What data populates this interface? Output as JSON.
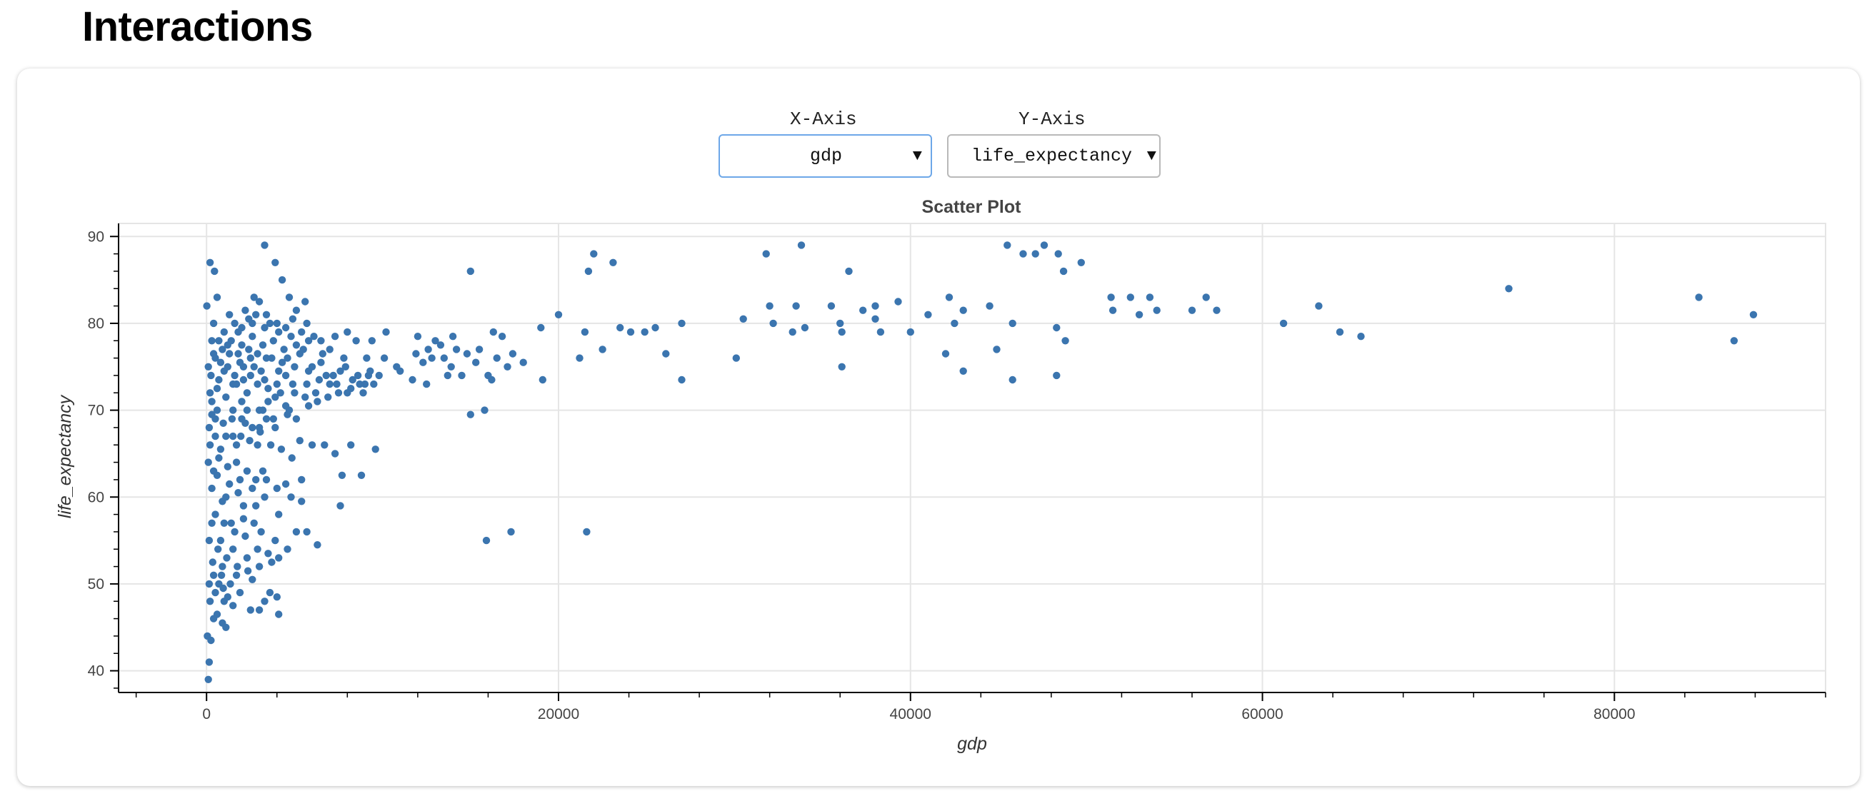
{
  "page": {
    "title": "Interactions"
  },
  "controls": {
    "x_axis": {
      "label": "X-Axis",
      "selected": "gdp",
      "caret": "▼"
    },
    "y_axis": {
      "label": "Y-Axis",
      "selected": "life_expectancy",
      "caret": "▼"
    }
  },
  "colors": {
    "point": "#3b75af",
    "grid": "#e5e5e5",
    "axis": "#000000",
    "focus_border": "#6da7e8"
  },
  "chart_data": {
    "type": "scatter",
    "title": "Scatter Plot",
    "xlabel": "gdp",
    "ylabel": "life_expectancy",
    "xlim": [
      -5000,
      92000
    ],
    "ylim": [
      37.5,
      91.5
    ],
    "x_ticks": [
      0,
      20000,
      40000,
      60000,
      80000
    ],
    "y_ticks": [
      40,
      50,
      60,
      70,
      80,
      90
    ],
    "grid": true,
    "points": [
      [
        15,
        82
      ],
      [
        200,
        87
      ],
      [
        450,
        86
      ],
      [
        3300,
        89
      ],
      [
        3900,
        87
      ],
      [
        600,
        83
      ],
      [
        1300,
        81
      ],
      [
        2700,
        83
      ],
      [
        3000,
        82.5
      ],
      [
        4300,
        85
      ],
      [
        4700,
        83
      ],
      [
        5100,
        81.5
      ],
      [
        5600,
        82.5
      ],
      [
        300,
        78
      ],
      [
        1000,
        79
      ],
      [
        2000,
        79.5
      ],
      [
        2600,
        80
      ],
      [
        3300,
        79.5
      ],
      [
        4000,
        80
      ],
      [
        4900,
        80.5
      ],
      [
        5700,
        80
      ],
      [
        6500,
        78
      ],
      [
        7300,
        78.5
      ],
      [
        8000,
        79
      ],
      [
        8500,
        78
      ],
      [
        9400,
        78
      ],
      [
        10200,
        79
      ],
      [
        12000,
        78.5
      ],
      [
        13000,
        78
      ],
      [
        14000,
        78.5
      ],
      [
        16300,
        79
      ],
      [
        16800,
        78.5
      ],
      [
        19000,
        79.5
      ],
      [
        21500,
        79
      ],
      [
        23500,
        79.5
      ],
      [
        24100,
        79
      ],
      [
        25500,
        79.5
      ],
      [
        27000,
        80
      ],
      [
        30500,
        80.5
      ],
      [
        32200,
        80
      ],
      [
        34000,
        79.5
      ],
      [
        36000,
        80
      ],
      [
        38000,
        80.5
      ],
      [
        41000,
        81
      ],
      [
        42500,
        80
      ],
      [
        45800,
        80
      ],
      [
        48300,
        79.5
      ],
      [
        54000,
        81.5
      ],
      [
        56000,
        81.5
      ],
      [
        20000,
        81
      ],
      [
        32000,
        82
      ],
      [
        33500,
        82
      ],
      [
        35500,
        82
      ],
      [
        37300,
        81.5
      ],
      [
        38000,
        82
      ],
      [
        39300,
        82.5
      ],
      [
        42200,
        83
      ],
      [
        44500,
        82
      ],
      [
        51400,
        83
      ],
      [
        52500,
        83
      ],
      [
        53600,
        83
      ],
      [
        56800,
        83
      ],
      [
        22000,
        88
      ],
      [
        23100,
        87
      ],
      [
        31800,
        88
      ],
      [
        33800,
        89
      ],
      [
        36500,
        86
      ],
      [
        45500,
        89
      ],
      [
        46400,
        88
      ],
      [
        47100,
        88
      ],
      [
        47600,
        89
      ],
      [
        48400,
        88
      ],
      [
        49700,
        87
      ],
      [
        48700,
        86
      ],
      [
        15000,
        86
      ],
      [
        21700,
        86
      ],
      [
        74000,
        84
      ],
      [
        84800,
        83
      ],
      [
        87900,
        81
      ],
      [
        86800,
        78
      ],
      [
        61200,
        80
      ],
      [
        63200,
        82
      ],
      [
        64400,
        79
      ],
      [
        65600,
        78.5
      ],
      [
        57400,
        81.5
      ],
      [
        53000,
        81
      ],
      [
        51500,
        81.5
      ],
      [
        43000,
        81.5
      ],
      [
        40000,
        79
      ],
      [
        38300,
        79
      ],
      [
        36100,
        79
      ],
      [
        33300,
        79
      ],
      [
        30100,
        76
      ],
      [
        27000,
        73.5
      ],
      [
        26100,
        76.5
      ],
      [
        24900,
        79
      ],
      [
        22500,
        77
      ],
      [
        21200,
        76
      ],
      [
        19100,
        73.5
      ],
      [
        17400,
        76.5
      ],
      [
        16200,
        73.5
      ],
      [
        15000,
        69.5
      ],
      [
        15800,
        70
      ],
      [
        42000,
        76.5
      ],
      [
        43000,
        74.5
      ],
      [
        44900,
        77
      ],
      [
        45800,
        73.5
      ],
      [
        48300,
        74
      ],
      [
        48800,
        78
      ],
      [
        36100,
        75
      ],
      [
        15900,
        55
      ],
      [
        17300,
        56
      ],
      [
        21600,
        56
      ],
      [
        9600,
        65.5
      ],
      [
        8800,
        62.5
      ],
      [
        7700,
        62.5
      ],
      [
        7600,
        59
      ],
      [
        6300,
        54.5
      ],
      [
        5700,
        56
      ],
      [
        5400,
        59.5
      ],
      [
        5100,
        56
      ],
      [
        4500,
        61.5
      ],
      [
        3200,
        63
      ],
      [
        2800,
        59
      ],
      [
        2100,
        57.5
      ],
      [
        1800,
        60.5
      ],
      [
        1300,
        61.5
      ],
      [
        900,
        59.5
      ],
      [
        600,
        62.5
      ],
      [
        300,
        61
      ],
      [
        100,
        64
      ],
      [
        800,
        65.5
      ],
      [
        1500,
        67
      ],
      [
        2200,
        68.5
      ],
      [
        3000,
        68
      ],
      [
        3800,
        69
      ],
      [
        4600,
        69.5
      ],
      [
        5300,
        66.5
      ],
      [
        6000,
        66
      ],
      [
        6700,
        66
      ],
      [
        7300,
        65
      ],
      [
        8200,
        66
      ],
      [
        600,
        70
      ],
      [
        1100,
        71.5
      ],
      [
        1700,
        73
      ],
      [
        2300,
        72
      ],
      [
        2900,
        73
      ],
      [
        3500,
        72.5
      ],
      [
        4200,
        72
      ],
      [
        4900,
        73
      ],
      [
        5600,
        71.5
      ],
      [
        6200,
        72
      ],
      [
        6900,
        71.5
      ],
      [
        7500,
        72
      ],
      [
        8200,
        72.5
      ],
      [
        8900,
        72
      ],
      [
        9500,
        73
      ],
      [
        12500,
        73
      ],
      [
        13700,
        74
      ],
      [
        16000,
        74
      ],
      [
        18000,
        75.5
      ],
      [
        250,
        74
      ],
      [
        700,
        73.5
      ],
      [
        1200,
        75
      ],
      [
        1900,
        75.5
      ],
      [
        2500,
        76
      ],
      [
        3100,
        74.5
      ],
      [
        3700,
        76
      ],
      [
        4300,
        75.5
      ],
      [
        5000,
        75
      ],
      [
        5800,
        74.5
      ],
      [
        6500,
        75.5
      ],
      [
        7200,
        74
      ],
      [
        7900,
        75
      ],
      [
        8600,
        74
      ],
      [
        9300,
        74.5
      ],
      [
        11000,
        74.5
      ],
      [
        12300,
        75.5
      ],
      [
        13500,
        76
      ],
      [
        14800,
        76.5
      ],
      [
        15500,
        77
      ],
      [
        17100,
        75
      ],
      [
        400,
        76.5
      ],
      [
        900,
        77
      ],
      [
        1400,
        78
      ],
      [
        2000,
        77.5
      ],
      [
        2600,
        78.5
      ],
      [
        3200,
        77.5
      ],
      [
        3800,
        78
      ],
      [
        4400,
        77
      ],
      [
        5100,
        77.5
      ],
      [
        5800,
        78
      ],
      [
        6600,
        76.5
      ],
      [
        150,
        68
      ],
      [
        500,
        69
      ],
      [
        950,
        68.5
      ],
      [
        1450,
        69
      ],
      [
        1950,
        67
      ],
      [
        2450,
        66.5
      ],
      [
        3050,
        67.5
      ],
      [
        3650,
        66
      ],
      [
        4250,
        65.5
      ],
      [
        4850,
        64.5
      ],
      [
        200,
        66
      ],
      [
        700,
        64.5
      ],
      [
        1200,
        63.5
      ],
      [
        1700,
        64
      ],
      [
        2300,
        63
      ],
      [
        2800,
        62
      ],
      [
        3400,
        62
      ],
      [
        4000,
        61
      ],
      [
        500,
        58
      ],
      [
        1000,
        57
      ],
      [
        1600,
        56
      ],
      [
        2200,
        55.5
      ],
      [
        2900,
        54
      ],
      [
        3500,
        53.5
      ],
      [
        4100,
        53
      ],
      [
        150,
        55
      ],
      [
        650,
        54
      ],
      [
        1150,
        53
      ],
      [
        1750,
        52
      ],
      [
        2350,
        51.5
      ],
      [
        350,
        52.5
      ],
      [
        850,
        51
      ],
      [
        1350,
        50
      ],
      [
        150,
        50
      ],
      [
        500,
        49
      ],
      [
        1000,
        48
      ],
      [
        1500,
        47.5
      ],
      [
        200,
        48
      ],
      [
        600,
        46.5
      ],
      [
        1100,
        45
      ],
      [
        3000,
        47
      ],
      [
        3300,
        48
      ],
      [
        3600,
        49
      ],
      [
        4100,
        46.5
      ],
      [
        4000,
        48.5
      ],
      [
        400,
        46
      ],
      [
        900,
        45.5
      ],
      [
        50,
        44
      ],
      [
        250,
        43.5
      ],
      [
        150,
        41
      ],
      [
        100,
        39
      ],
      [
        4500,
        74
      ],
      [
        4000,
        73
      ],
      [
        3500,
        71
      ],
      [
        3000,
        70
      ],
      [
        2500,
        74
      ],
      [
        2000,
        71
      ],
      [
        1500,
        73
      ],
      [
        1000,
        74.5
      ],
      [
        600,
        72.5
      ],
      [
        300,
        71
      ],
      [
        100,
        75
      ],
      [
        1800,
        79
      ],
      [
        2400,
        80.5
      ],
      [
        2800,
        81
      ],
      [
        3600,
        80
      ],
      [
        4500,
        79.5
      ],
      [
        5400,
        79
      ],
      [
        6100,
        78.5
      ],
      [
        1200,
        77.5
      ],
      [
        700,
        78
      ],
      [
        1800,
        76.5
      ],
      [
        2700,
        75
      ],
      [
        3300,
        73.5
      ],
      [
        4100,
        74.5
      ],
      [
        5000,
        72
      ],
      [
        5700,
        73
      ],
      [
        6400,
        73.5
      ],
      [
        7000,
        73
      ],
      [
        7600,
        74.5
      ],
      [
        8300,
        73.5
      ],
      [
        9000,
        73
      ],
      [
        9800,
        74
      ],
      [
        10800,
        75
      ],
      [
        11700,
        73.5
      ],
      [
        12800,
        76
      ],
      [
        13900,
        75
      ],
      [
        14500,
        74
      ],
      [
        15300,
        75.5
      ],
      [
        16500,
        76
      ],
      [
        4700,
        70
      ],
      [
        3900,
        68
      ],
      [
        3400,
        69
      ],
      [
        2900,
        66
      ],
      [
        2300,
        70
      ],
      [
        1700,
        66
      ],
      [
        1100,
        67
      ],
      [
        500,
        67
      ],
      [
        400,
        63
      ],
      [
        1100,
        60
      ],
      [
        1900,
        62
      ],
      [
        2600,
        61
      ],
      [
        3300,
        60
      ],
      [
        4100,
        58
      ],
      [
        4800,
        60
      ],
      [
        5400,
        62
      ],
      [
        800,
        55
      ],
      [
        1400,
        57
      ],
      [
        2100,
        59
      ],
      [
        2700,
        57
      ],
      [
        3100,
        56
      ],
      [
        3900,
        55
      ],
      [
        4600,
        54
      ],
      [
        300,
        57
      ],
      [
        900,
        52
      ],
      [
        1500,
        54
      ],
      [
        2300,
        53
      ],
      [
        3000,
        52
      ],
      [
        3700,
        52.5
      ],
      [
        700,
        50
      ],
      [
        1200,
        48.5
      ],
      [
        1900,
        49
      ],
      [
        2500,
        47
      ],
      [
        400,
        51
      ],
      [
        950,
        49.5
      ],
      [
        1700,
        51
      ],
      [
        2600,
        50.5
      ],
      [
        300,
        69.5
      ],
      [
        2100,
        73.5
      ],
      [
        4600,
        76
      ],
      [
        5300,
        76.5
      ],
      [
        7000,
        77
      ],
      [
        7800,
        76
      ],
      [
        9100,
        76
      ],
      [
        10100,
        76
      ],
      [
        11900,
        76.5
      ],
      [
        12600,
        77
      ],
      [
        13300,
        77.5
      ],
      [
        14200,
        77
      ],
      [
        400,
        80
      ],
      [
        1600,
        80
      ],
      [
        2200,
        81.5
      ],
      [
        3400,
        81
      ],
      [
        4100,
        79
      ],
      [
        4800,
        78.5
      ],
      [
        5500,
        77
      ],
      [
        6000,
        75
      ],
      [
        6800,
        74
      ],
      [
        7400,
        73
      ],
      [
        8000,
        72
      ],
      [
        8700,
        73
      ],
      [
        9200,
        74
      ],
      [
        1500,
        70
      ],
      [
        2000,
        69
      ],
      [
        2600,
        68
      ],
      [
        3200,
        70
      ],
      [
        3900,
        71.5
      ],
      [
        4500,
        70.5
      ],
      [
        5100,
        69
      ],
      [
        5800,
        70.5
      ],
      [
        6300,
        71
      ],
      [
        200,
        72
      ],
      [
        500,
        76
      ],
      [
        800,
        75.5
      ],
      [
        1300,
        76.5
      ],
      [
        1600,
        74
      ],
      [
        2100,
        75
      ],
      [
        2400,
        77
      ],
      [
        2900,
        76.5
      ],
      [
        3400,
        76
      ]
    ]
  }
}
